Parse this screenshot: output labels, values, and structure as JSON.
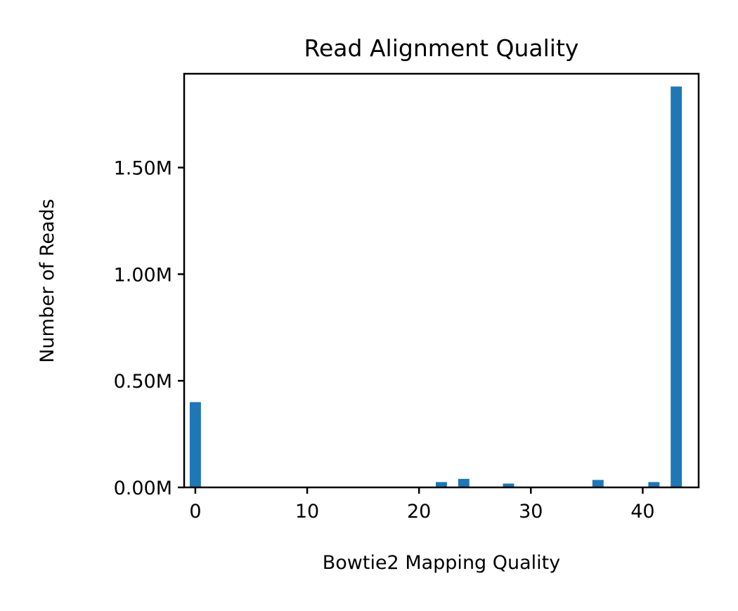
{
  "chart_data": {
    "type": "bar",
    "title": "Read Alignment Quality",
    "xlabel": "Bowtie2 Mapping Quality",
    "ylabel": "Number of Reads",
    "xlim": [
      -1,
      45
    ],
    "ylim": [
      0,
      1.94
    ],
    "x_ticks": [
      0,
      10,
      20,
      30,
      40
    ],
    "x_tick_labels": [
      "0",
      "10",
      "20",
      "30",
      "40"
    ],
    "y_ticks": [
      0,
      0.5,
      1.0,
      1.5
    ],
    "y_tick_labels": [
      "0.00M",
      "0.50M",
      "1.00M",
      "1.50M"
    ],
    "y_unit": "millions of reads",
    "bar_width": 1,
    "grid": false,
    "legend": false,
    "bar_color": "#1f77b4",
    "series": [
      {
        "x": [
          0,
          22,
          24,
          28,
          36,
          41,
          43
        ],
        "values": [
          0.4,
          0.025,
          0.04,
          0.018,
          0.035,
          0.025,
          1.88
        ]
      }
    ]
  }
}
